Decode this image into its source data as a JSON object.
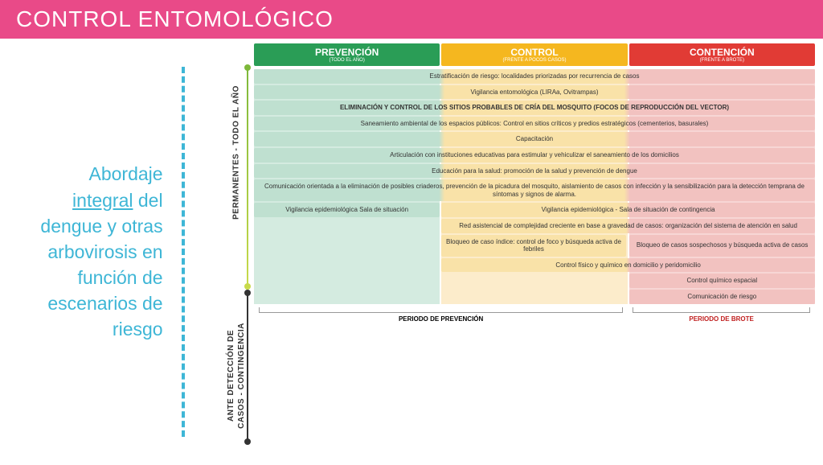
{
  "header": {
    "title": "CONTROL ENTOMOLÓGICO"
  },
  "leftText": {
    "line1": "Abordaje",
    "underlined": "integral",
    "line2_rest": " del",
    "line3": "dengue y otras",
    "line4": "arbovirosis en",
    "line5": "función de",
    "line6": "escenarios de",
    "line7": "riesgo"
  },
  "vlabels": {
    "top": "PERMANENTES - TODO EL AÑO",
    "bottom": "ANTE DETECCIÓN DE\nCASOS - CONTINGENCIA"
  },
  "colHeaders": [
    {
      "title": "PREVENCIÓN",
      "sub": "(TODO EL AÑO)",
      "bg": "#2a9d56"
    },
    {
      "title": "CONTROL",
      "sub": "(FRENTE A POCOS CASOS)",
      "bg": "#f5b71f"
    },
    {
      "title": "CONTENCIÓN",
      "sub": "(FRENTE A BROTE)",
      "bg": "#e13b35"
    }
  ],
  "bgColors": {
    "c1": "#d4ebe0",
    "c2": "#fceccb",
    "c3": "#f7d6d5"
  },
  "cellColors": {
    "c1": "#bfe0d0",
    "c2": "#f9e2a8",
    "c3": "#f2c2c0"
  },
  "rows": [
    {
      "span": "3",
      "text": "Estratificación de riesgo: localidades priorizadas por recurrencia de casos",
      "bold": false
    },
    {
      "span": "3",
      "text": "Vigilancia entomológica (LIRAa, Ovitrampas)",
      "bold": false
    },
    {
      "span": "3",
      "text": "ELIMINACIÓN Y CONTROL DE LOS SITIOS PROBABLES DE CRÍA DEL MOSQUITO (FOCOS DE REPRODUCCIÓN DEL VECTOR)",
      "bold": true
    },
    {
      "span": "3",
      "text": "Saneamiento ambiental de los espacios públicos: Control en sitios críticos y predios estratégicos (cementerios, basurales)",
      "bold": false
    },
    {
      "span": "3",
      "text": "Capacitación",
      "bold": false
    },
    {
      "span": "3",
      "text": "Articulación con instituciones educativas para estimular y vehiculizar el saneamiento de los domicilios",
      "bold": false
    },
    {
      "span": "3",
      "text": "Educación para la salud: promoción de la salud y prevención de dengue",
      "bold": false
    },
    {
      "span": "3",
      "text": "Comunicación orientada a la eliminación de posibles criaderos, prevención de la picadura del mosquito, aislamiento de casos con infección y la sensibilización para la detección temprana de síntomas y signos de alarma.",
      "bold": false
    },
    {
      "span": "split",
      "leftText": "Vigilancia epidemiológica Sala de situación",
      "rightText": "Vigilancia epidemiológica - Sala de situación de contingencia"
    },
    {
      "span": "2r",
      "text": "Red asistencial de complejidad creciente en base a gravedad de casos: organización del sistema de atención en salud"
    },
    {
      "span": "mid-right",
      "midText": "Bloqueo de caso índice: control de foco y búsqueda activa de febriles",
      "rightText": "Bloqueo de casos sospechosos y búsqueda activa de casos"
    },
    {
      "span": "2r",
      "text": "Control físico y químico en domicilio y peridomicilio"
    },
    {
      "span": "1r",
      "text": "Control químico espacial"
    },
    {
      "span": "1r",
      "text": "Comunicación de riesgo"
    }
  ],
  "periods": {
    "p1": "PERIODO DE PREVENCIÓN",
    "p2": "PERIODO DE BROTE"
  }
}
